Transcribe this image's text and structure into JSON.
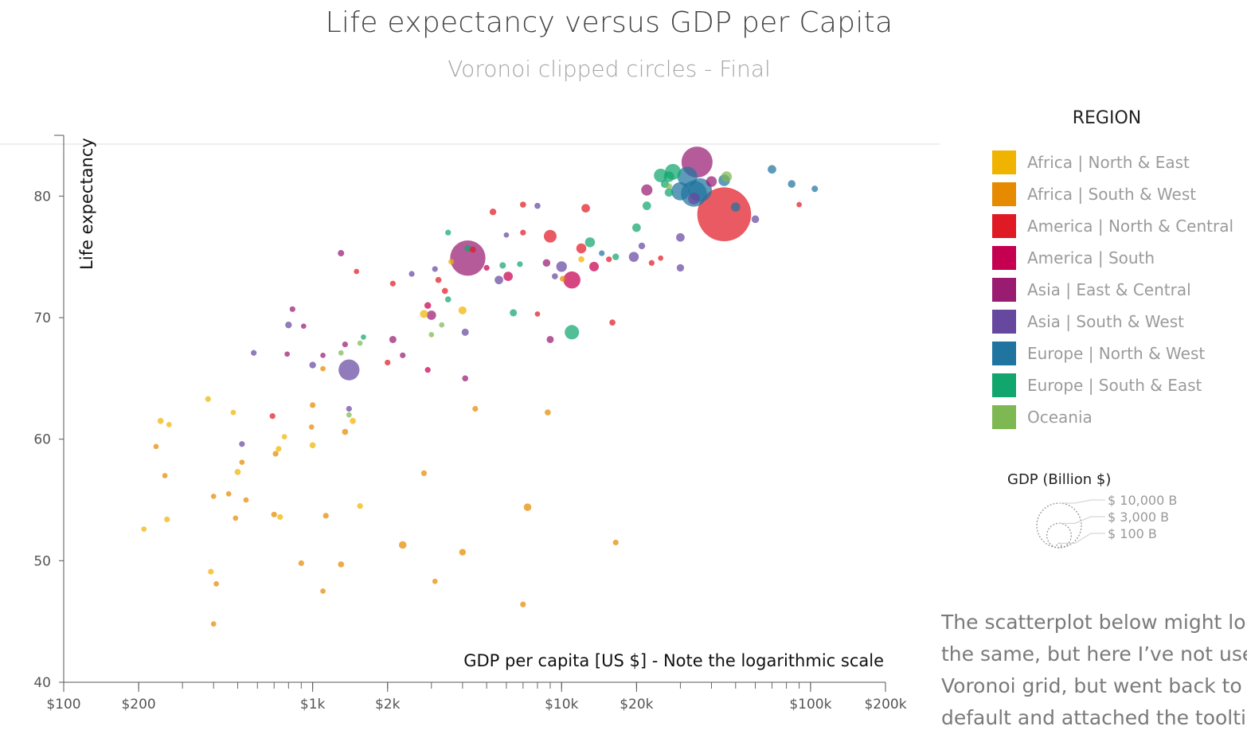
{
  "chart_data": {
    "type": "scatter",
    "title": "Life expectancy versus GDP per Capita",
    "subtitle": "Voronoi clipped circles - Final",
    "xlabel": "GDP per capita [US $] - Note the logarithmic scale",
    "ylabel": "Life expectancy",
    "x_scale": "log",
    "xlim": [
      100,
      200000
    ],
    "ylim": [
      40,
      85
    ],
    "x_ticks": [
      {
        "value": 100,
        "label": "$100"
      },
      {
        "value": 200,
        "label": "$200"
      },
      {
        "value": 1000,
        "label": "$1k"
      },
      {
        "value": 2000,
        "label": "$2k"
      },
      {
        "value": 10000,
        "label": "$10k"
      },
      {
        "value": 20000,
        "label": "$20k"
      },
      {
        "value": 100000,
        "label": "$100k"
      },
      {
        "value": 200000,
        "label": "$200k"
      }
    ],
    "y_ticks": [
      40,
      50,
      60,
      70,
      80
    ],
    "legend": {
      "title": "REGION",
      "placement": "right",
      "items": [
        {
          "name": "Africa | North & East",
          "color": "#F0B400"
        },
        {
          "name": "Africa | South & West",
          "color": "#E68A00"
        },
        {
          "name": "America | North & Central",
          "color": "#E01A25"
        },
        {
          "name": "America | South",
          "color": "#C60050"
        },
        {
          "name": "Asia | East & Central",
          "color": "#991C71"
        },
        {
          "name": "Asia | South & West",
          "color": "#66489F"
        },
        {
          "name": "Europe | North & West",
          "color": "#2074A0"
        },
        {
          "name": "Europe | South & East",
          "color": "#10A66E"
        },
        {
          "name": "Oceania",
          "color": "#7EB852"
        }
      ]
    },
    "size_legend": {
      "title": "GDP (Billion $)",
      "entries": [
        {
          "value": 10000,
          "label": "$ 10,000 B"
        },
        {
          "value": 3000,
          "label": "$ 3,000 B"
        },
        {
          "value": 100,
          "label": "$ 100 B"
        }
      ]
    },
    "points": [
      {
        "x": 45000,
        "y": 78.5,
        "gdp": 15000,
        "region": 2
      },
      {
        "x": 35000,
        "y": 82.8,
        "gdp": 4500,
        "region": 4
      },
      {
        "x": 4200,
        "y": 74.9,
        "gdp": 6000,
        "region": 4
      },
      {
        "x": 1400,
        "y": 65.7,
        "gdp": 1800,
        "region": 5
      },
      {
        "x": 34000,
        "y": 80.2,
        "gdp": 3000,
        "region": 6
      },
      {
        "x": 36000,
        "y": 80.5,
        "gdp": 2400,
        "region": 6
      },
      {
        "x": 32000,
        "y": 81.6,
        "gdp": 1600,
        "region": 6
      },
      {
        "x": 30000,
        "y": 80.4,
        "gdp": 1300,
        "region": 6
      },
      {
        "x": 28000,
        "y": 82.0,
        "gdp": 900,
        "region": 7
      },
      {
        "x": 25000,
        "y": 81.7,
        "gdp": 600,
        "region": 7
      },
      {
        "x": 46000,
        "y": 81.6,
        "gdp": 300,
        "region": 8
      },
      {
        "x": 45000,
        "y": 81.3,
        "gdp": 380,
        "region": 6
      },
      {
        "x": 40000,
        "y": 81.2,
        "gdp": 300,
        "region": 4
      },
      {
        "x": 50000,
        "y": 79.1,
        "gdp": 200,
        "region": 6
      },
      {
        "x": 70000,
        "y": 82.2,
        "gdp": 150,
        "region": 6
      },
      {
        "x": 84000,
        "y": 81.0,
        "gdp": 100,
        "region": 6
      },
      {
        "x": 104000,
        "y": 80.6,
        "gdp": 50,
        "region": 6
      },
      {
        "x": 22000,
        "y": 80.5,
        "gdp": 350,
        "region": 4
      },
      {
        "x": 27000,
        "y": 81.6,
        "gdp": 300,
        "region": 7
      },
      {
        "x": 26000,
        "y": 81.0,
        "gdp": 120,
        "region": 7
      },
      {
        "x": 34000,
        "y": 79.8,
        "gdp": 400,
        "region": 5
      },
      {
        "x": 27000,
        "y": 80.8,
        "gdp": 40,
        "region": 8
      },
      {
        "x": 9000,
        "y": 76.7,
        "gdp": 500,
        "region": 2
      },
      {
        "x": 11000,
        "y": 73.1,
        "gdp": 1100,
        "region": 3
      },
      {
        "x": 11000,
        "y": 68.8,
        "gdp": 700,
        "region": 7
      },
      {
        "x": 10000,
        "y": 74.2,
        "gdp": 300,
        "region": 5
      },
      {
        "x": 13000,
        "y": 76.2,
        "gdp": 250,
        "region": 7
      },
      {
        "x": 12000,
        "y": 75.7,
        "gdp": 250,
        "region": 2
      },
      {
        "x": 13500,
        "y": 74.2,
        "gdp": 220,
        "region": 3
      },
      {
        "x": 12500,
        "y": 79.0,
        "gdp": 150,
        "region": 2
      },
      {
        "x": 19500,
        "y": 75.0,
        "gdp": 250,
        "region": 5
      },
      {
        "x": 20000,
        "y": 77.4,
        "gdp": 150,
        "region": 7
      },
      {
        "x": 22000,
        "y": 79.2,
        "gdp": 150,
        "region": 7
      },
      {
        "x": 27000,
        "y": 80.3,
        "gdp": 150,
        "region": 7
      },
      {
        "x": 30000,
        "y": 76.6,
        "gdp": 150,
        "region": 5
      },
      {
        "x": 30000,
        "y": 74.1,
        "gdp": 90,
        "region": 5
      },
      {
        "x": 60000,
        "y": 78.1,
        "gdp": 100,
        "region": 5
      },
      {
        "x": 90000,
        "y": 79.3,
        "gdp": 20,
        "region": 2
      },
      {
        "x": 7000,
        "y": 79.3,
        "gdp": 40,
        "region": 2
      },
      {
        "x": 8000,
        "y": 79.2,
        "gdp": 40,
        "region": 5
      },
      {
        "x": 7000,
        "y": 77.0,
        "gdp": 30,
        "region": 2
      },
      {
        "x": 6000,
        "y": 76.8,
        "gdp": 20,
        "region": 5
      },
      {
        "x": 5300,
        "y": 78.7,
        "gdp": 60,
        "region": 2
      },
      {
        "x": 3500,
        "y": 77.0,
        "gdp": 30,
        "region": 7
      },
      {
        "x": 4200,
        "y": 75.7,
        "gdp": 60,
        "region": 7
      },
      {
        "x": 4400,
        "y": 75.6,
        "gdp": 40,
        "region": 2
      },
      {
        "x": 5000,
        "y": 74.1,
        "gdp": 30,
        "region": 3
      },
      {
        "x": 5600,
        "y": 73.1,
        "gdp": 150,
        "region": 5
      },
      {
        "x": 5800,
        "y": 74.3,
        "gdp": 50,
        "region": 7
      },
      {
        "x": 6100,
        "y": 73.4,
        "gdp": 200,
        "region": 3
      },
      {
        "x": 6800,
        "y": 74.4,
        "gdp": 30,
        "region": 7
      },
      {
        "x": 8700,
        "y": 74.5,
        "gdp": 100,
        "region": 4
      },
      {
        "x": 9400,
        "y": 73.4,
        "gdp": 40,
        "region": 5
      },
      {
        "x": 10100,
        "y": 73.2,
        "gdp": 30,
        "region": 1
      },
      {
        "x": 12000,
        "y": 74.8,
        "gdp": 40,
        "region": 0
      },
      {
        "x": 14500,
        "y": 75.3,
        "gdp": 30,
        "region": 6
      },
      {
        "x": 16500,
        "y": 75.0,
        "gdp": 60,
        "region": 7
      },
      {
        "x": 21000,
        "y": 75.9,
        "gdp": 60,
        "region": 5
      },
      {
        "x": 23000,
        "y": 74.5,
        "gdp": 30,
        "region": 2
      },
      {
        "x": 25000,
        "y": 74.9,
        "gdp": 20,
        "region": 2
      },
      {
        "x": 15500,
        "y": 74.8,
        "gdp": 30,
        "region": 2
      },
      {
        "x": 6400,
        "y": 70.4,
        "gdp": 80,
        "region": 7
      },
      {
        "x": 8000,
        "y": 70.3,
        "gdp": 20,
        "region": 2
      },
      {
        "x": 9000,
        "y": 68.2,
        "gdp": 80,
        "region": 4
      },
      {
        "x": 4000,
        "y": 70.6,
        "gdp": 120,
        "region": 0
      },
      {
        "x": 4100,
        "y": 68.8,
        "gdp": 80,
        "region": 5
      },
      {
        "x": 4100,
        "y": 65.0,
        "gdp": 40,
        "region": 4
      },
      {
        "x": 16000,
        "y": 69.6,
        "gdp": 40,
        "region": 2
      },
      {
        "x": 3000,
        "y": 70.2,
        "gdp": 200,
        "region": 4
      },
      {
        "x": 2800,
        "y": 70.3,
        "gdp": 120,
        "region": 0
      },
      {
        "x": 2900,
        "y": 71.0,
        "gdp": 60,
        "region": 3
      },
      {
        "x": 3400,
        "y": 72.2,
        "gdp": 40,
        "region": 2
      },
      {
        "x": 3500,
        "y": 71.5,
        "gdp": 40,
        "region": 7
      },
      {
        "x": 3200,
        "y": 73.1,
        "gdp": 40,
        "region": 2
      },
      {
        "x": 3100,
        "y": 74.0,
        "gdp": 30,
        "region": 5
      },
      {
        "x": 2500,
        "y": 73.6,
        "gdp": 30,
        "region": 5
      },
      {
        "x": 2100,
        "y": 72.8,
        "gdp": 30,
        "region": 2
      },
      {
        "x": 2000,
        "y": 66.3,
        "gdp": 30,
        "region": 2
      },
      {
        "x": 2100,
        "y": 68.2,
        "gdp": 80,
        "region": 4
      },
      {
        "x": 2300,
        "y": 66.9,
        "gdp": 30,
        "region": 4
      },
      {
        "x": 2900,
        "y": 65.7,
        "gdp": 30,
        "region": 3
      },
      {
        "x": 3600,
        "y": 74.6,
        "gdp": 30,
        "region": 0
      },
      {
        "x": 3000,
        "y": 68.6,
        "gdp": 20,
        "region": 8
      },
      {
        "x": 3300,
        "y": 69.4,
        "gdp": 20,
        "region": 8
      },
      {
        "x": 1600,
        "y": 68.4,
        "gdp": 20,
        "region": 7
      },
      {
        "x": 1300,
        "y": 75.3,
        "gdp": 50,
        "region": 4
      },
      {
        "x": 1500,
        "y": 73.8,
        "gdp": 20,
        "region": 2
      },
      {
        "x": 1350,
        "y": 67.8,
        "gdp": 30,
        "region": 4
      },
      {
        "x": 1100,
        "y": 66.9,
        "gdp": 20,
        "region": 4
      },
      {
        "x": 1000,
        "y": 66.1,
        "gdp": 60,
        "region": 5
      },
      {
        "x": 800,
        "y": 69.4,
        "gdp": 60,
        "region": 5
      },
      {
        "x": 830,
        "y": 70.7,
        "gdp": 30,
        "region": 4
      },
      {
        "x": 920,
        "y": 69.3,
        "gdp": 20,
        "region": 4
      },
      {
        "x": 580,
        "y": 67.1,
        "gdp": 30,
        "region": 5
      },
      {
        "x": 790,
        "y": 67.0,
        "gdp": 20,
        "region": 4
      },
      {
        "x": 1100,
        "y": 65.8,
        "gdp": 20,
        "region": 1
      },
      {
        "x": 1400,
        "y": 62.5,
        "gdp": 30,
        "region": 5
      },
      {
        "x": 1450,
        "y": 61.5,
        "gdp": 40,
        "region": 0
      },
      {
        "x": 1350,
        "y": 60.6,
        "gdp": 40,
        "region": 1
      },
      {
        "x": 1400,
        "y": 62.0,
        "gdp": 20,
        "region": 8
      },
      {
        "x": 1550,
        "y": 67.9,
        "gdp": 20,
        "region": 8
      },
      {
        "x": 1300,
        "y": 67.1,
        "gdp": 20,
        "region": 8
      },
      {
        "x": 2800,
        "y": 57.2,
        "gdp": 30,
        "region": 1
      },
      {
        "x": 4500,
        "y": 62.5,
        "gdp": 30,
        "region": 1
      },
      {
        "x": 8800,
        "y": 62.2,
        "gdp": 40,
        "region": 1
      },
      {
        "x": 7300,
        "y": 54.4,
        "gdp": 100,
        "region": 1
      },
      {
        "x": 16500,
        "y": 51.5,
        "gdp": 30,
        "region": 1
      },
      {
        "x": 4000,
        "y": 50.7,
        "gdp": 60,
        "region": 1
      },
      {
        "x": 2300,
        "y": 51.3,
        "gdp": 100,
        "region": 1
      },
      {
        "x": 3100,
        "y": 48.3,
        "gdp": 20,
        "region": 1
      },
      {
        "x": 7000,
        "y": 46.4,
        "gdp": 30,
        "region": 1
      },
      {
        "x": 1100,
        "y": 47.5,
        "gdp": 20,
        "region": 1
      },
      {
        "x": 1300,
        "y": 49.7,
        "gdp": 40,
        "region": 1
      },
      {
        "x": 900,
        "y": 49.8,
        "gdp": 30,
        "region": 1
      },
      {
        "x": 1130,
        "y": 53.7,
        "gdp": 30,
        "region": 1
      },
      {
        "x": 1550,
        "y": 54.5,
        "gdp": 30,
        "region": 0
      },
      {
        "x": 210,
        "y": 52.6,
        "gdp": 20,
        "region": 0
      },
      {
        "x": 390,
        "y": 49.1,
        "gdp": 30,
        "region": 0
      },
      {
        "x": 410,
        "y": 48.1,
        "gdp": 20,
        "region": 1
      },
      {
        "x": 400,
        "y": 44.8,
        "gdp": 20,
        "region": 1
      },
      {
        "x": 260,
        "y": 53.4,
        "gdp": 30,
        "region": 0
      },
      {
        "x": 255,
        "y": 57.0,
        "gdp": 20,
        "region": 1
      },
      {
        "x": 235,
        "y": 59.4,
        "gdp": 20,
        "region": 1
      },
      {
        "x": 245,
        "y": 61.5,
        "gdp": 40,
        "region": 0
      },
      {
        "x": 265,
        "y": 61.2,
        "gdp": 20,
        "region": 0
      },
      {
        "x": 380,
        "y": 63.3,
        "gdp": 30,
        "region": 0
      },
      {
        "x": 400,
        "y": 55.3,
        "gdp": 20,
        "region": 1
      },
      {
        "x": 460,
        "y": 55.5,
        "gdp": 20,
        "region": 1
      },
      {
        "x": 490,
        "y": 53.5,
        "gdp": 20,
        "region": 1
      },
      {
        "x": 500,
        "y": 57.3,
        "gdp": 40,
        "region": 0
      },
      {
        "x": 540,
        "y": 55.0,
        "gdp": 20,
        "region": 1
      },
      {
        "x": 520,
        "y": 58.1,
        "gdp": 20,
        "region": 1
      },
      {
        "x": 480,
        "y": 62.2,
        "gdp": 20,
        "region": 0
      },
      {
        "x": 520,
        "y": 59.6,
        "gdp": 30,
        "region": 5
      },
      {
        "x": 690,
        "y": 61.9,
        "gdp": 30,
        "region": 2
      },
      {
        "x": 710,
        "y": 58.8,
        "gdp": 30,
        "region": 1
      },
      {
        "x": 730,
        "y": 59.2,
        "gdp": 30,
        "region": 0
      },
      {
        "x": 770,
        "y": 60.2,
        "gdp": 20,
        "region": 0
      },
      {
        "x": 700,
        "y": 53.8,
        "gdp": 30,
        "region": 1
      },
      {
        "x": 740,
        "y": 53.6,
        "gdp": 30,
        "region": 0
      },
      {
        "x": 1000,
        "y": 62.8,
        "gdp": 30,
        "region": 1
      },
      {
        "x": 990,
        "y": 61.0,
        "gdp": 20,
        "region": 1
      },
      {
        "x": 1000,
        "y": 59.5,
        "gdp": 40,
        "region": 0
      }
    ]
  },
  "side_text": {
    "lines": [
      "The scatterplot below might look",
      "the same, but here I’ve not used",
      "Voronoi grid, but went back to the",
      "default and attached the tooltip"
    ]
  }
}
